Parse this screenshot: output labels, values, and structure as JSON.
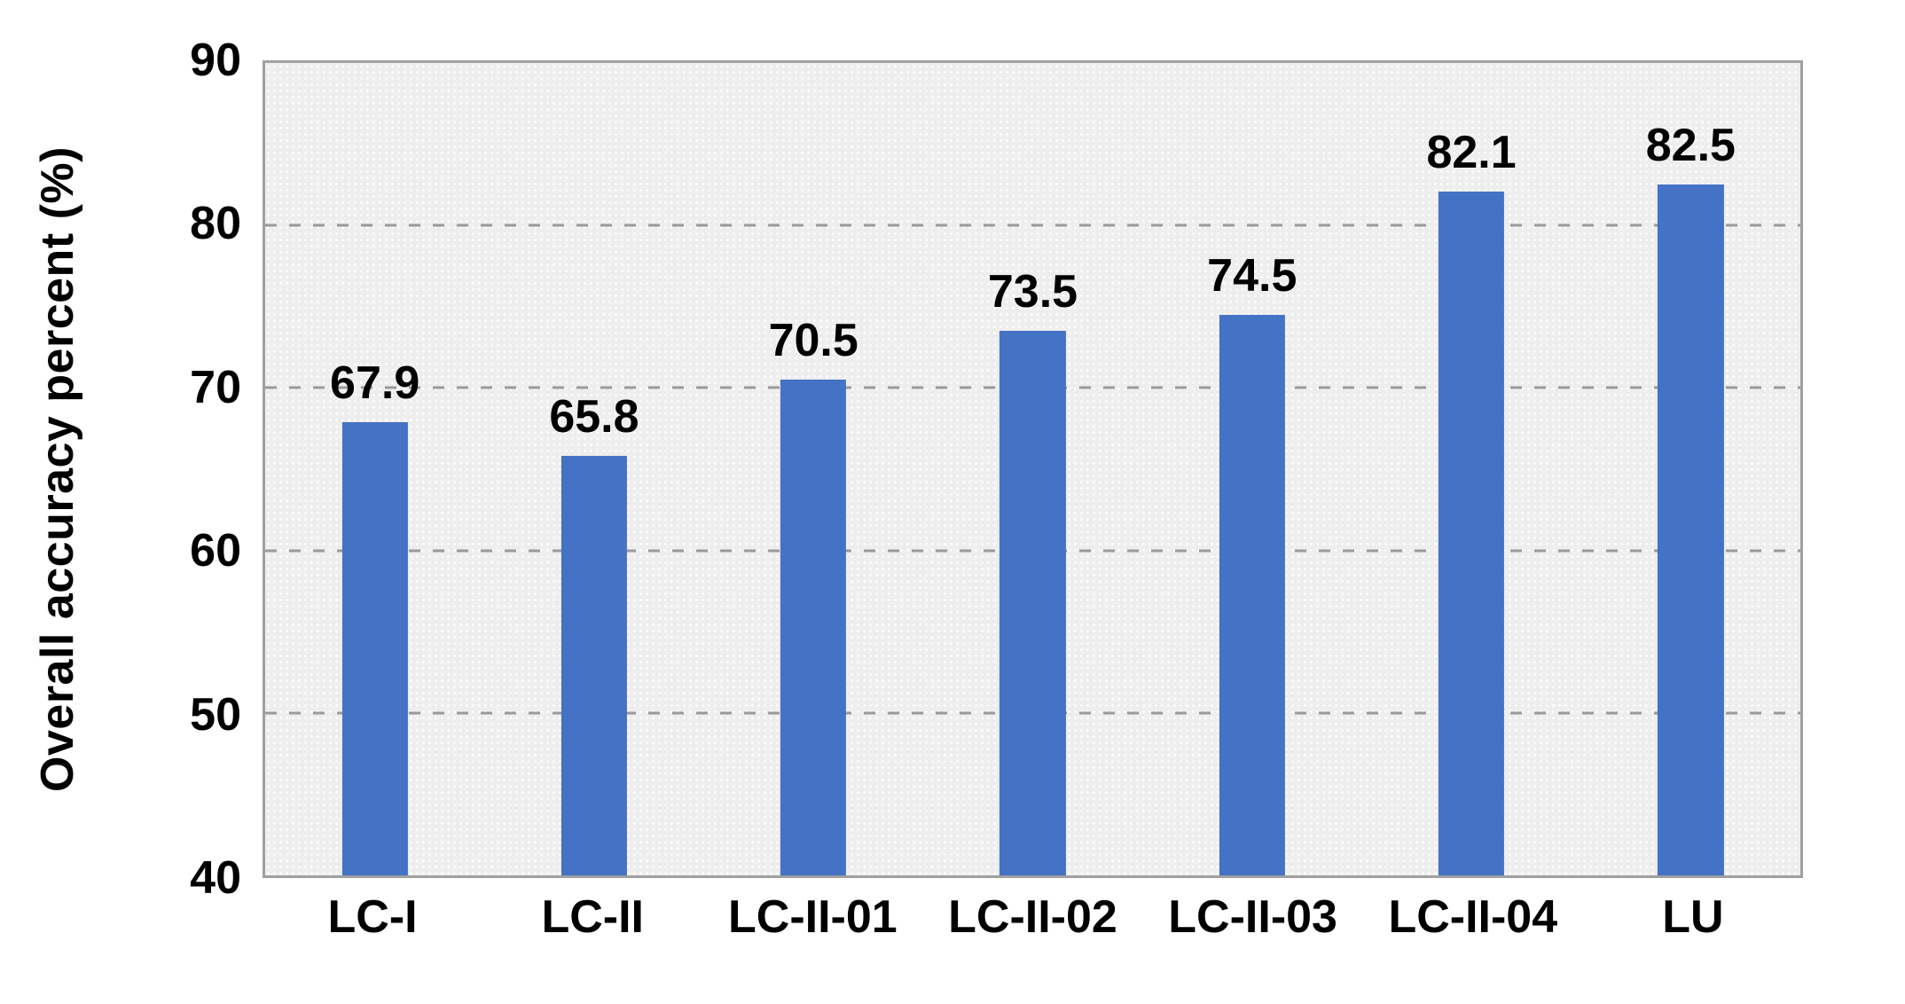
{
  "chart_data": {
    "type": "bar",
    "title": "",
    "xlabel": "",
    "ylabel": "Overall accuracy percent (%)",
    "categories": [
      "LC-I",
      "LC-II",
      "LC-II-01",
      "LC-II-02",
      "LC-II-03",
      "LC-II-04",
      "LU"
    ],
    "values": [
      67.9,
      65.8,
      70.5,
      73.5,
      74.5,
      82.1,
      82.5
    ],
    "value_labels": [
      "67.9",
      "65.8",
      "70.5",
      "73.5",
      "74.5",
      "82.1",
      "82.5"
    ],
    "ylim": [
      40,
      90
    ],
    "yticks": [
      40,
      50,
      60,
      70,
      80,
      90
    ],
    "grid": "horizontal-dashed",
    "legend": "none",
    "colors": {
      "bar": "#4472C4",
      "plot_background": "#EEEEEE",
      "plot_border": "#A0A0A0",
      "gridline": "#9A9A9A",
      "text": "#000000",
      "figure_background": "#FFFFFF"
    }
  }
}
